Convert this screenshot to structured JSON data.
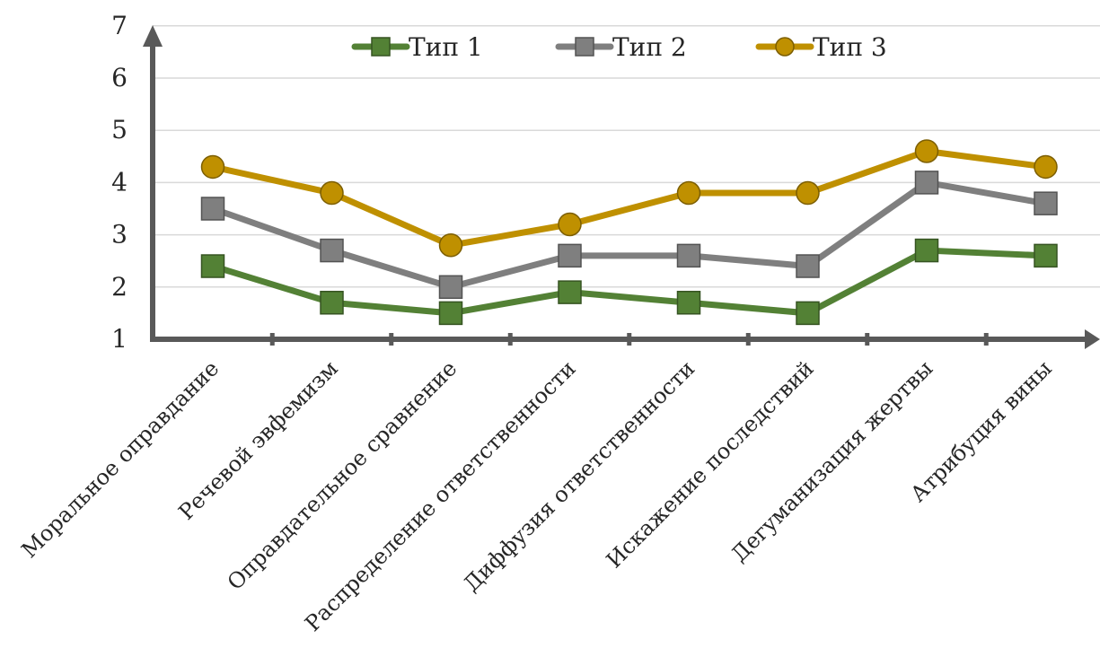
{
  "chart_data": {
    "type": "line",
    "title": "",
    "xlabel": "",
    "ylabel": "",
    "ylim": [
      1,
      7
    ],
    "y_ticks": [
      1,
      2,
      3,
      4,
      5,
      6,
      7
    ],
    "grid": true,
    "legend_position": "top",
    "categories": [
      "Моральное оправдание",
      "Речевой эвфемизм",
      "Оправдательное сравнение",
      "Распределение ответственности",
      "Диффузия ответственности",
      "Искажение последствий",
      "Дегуманизация жертвы",
      "Атрибуция вины"
    ],
    "series": [
      {
        "name": "Тип 1",
        "marker": "square",
        "color": "#538135",
        "values": [
          2.4,
          1.7,
          1.5,
          1.9,
          1.7,
          1.5,
          2.7,
          2.6
        ]
      },
      {
        "name": "Тип 2",
        "marker": "square",
        "color": "#7f7f7f",
        "values": [
          3.5,
          2.7,
          2.0,
          2.6,
          2.6,
          2.4,
          4.0,
          3.6
        ]
      },
      {
        "name": "Тип 3",
        "marker": "circle",
        "color": "#bf9000",
        "values": [
          4.3,
          3.8,
          2.8,
          3.2,
          3.8,
          3.8,
          4.6,
          4.3
        ]
      }
    ]
  }
}
